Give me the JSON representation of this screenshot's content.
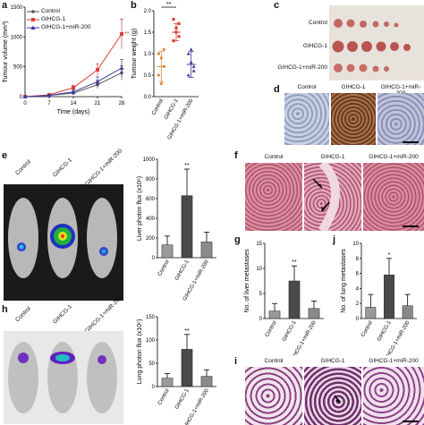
{
  "panels": {
    "a": {
      "label": "a",
      "xlabel": "Time (days)",
      "ylabel": "Tumour volume (mm³)",
      "sig": "**",
      "legend": [
        "Control",
        "GIHCG-1",
        "GIHCG-1+miR-200"
      ],
      "colors": {
        "control": "#555555",
        "gihcg": "#d9403a",
        "mir": "#3a3aa0"
      }
    },
    "b": {
      "label": "b",
      "ylabel": "Tumour weight (g)",
      "sig": "**"
    },
    "c": {
      "label": "c",
      "rows": [
        "Control",
        "GIHCG-1",
        "GIHCG-1+miR-200"
      ]
    },
    "d": {
      "label": "d",
      "headers": [
        "Control",
        "GIHCG-1",
        "GIHCG-1+miR-200"
      ]
    },
    "e": {
      "label": "e",
      "ylabel": "Liver photon flux (x10⁶)",
      "sig": "**",
      "mouse_labels": [
        "Control",
        "GIHCG-1",
        "GIHCG-1+miR-200"
      ]
    },
    "f": {
      "label": "f",
      "headers": [
        "Control",
        "GIHCG-1",
        "GIHCG-1+miR-200"
      ]
    },
    "g": {
      "label": "g",
      "ylabel": "No. of liver metastases",
      "sig": "**"
    },
    "h": {
      "label": "h",
      "ylabel": "Lung photon flux (x10⁶)",
      "sig": "**",
      "mouse_labels": [
        "Control",
        "GIHCG-1",
        "GIHCG-1+miR-200"
      ]
    },
    "i": {
      "label": "i",
      "headers": [
        "Control",
        "GIHCG-1",
        "GIHCG-1+miR-200"
      ]
    },
    "j": {
      "label": "j",
      "ylabel": "No. of lung metastases",
      "sig": "*"
    }
  },
  "chart_data": [
    {
      "id": "a",
      "type": "line",
      "x": [
        0,
        7,
        14,
        21,
        28
      ],
      "xlabel": "Time (days)",
      "ylabel": "Tumour volume (mm³)",
      "ylim": [
        0,
        1500
      ],
      "yticks": [
        0,
        500,
        1000,
        1500
      ],
      "series": [
        {
          "name": "Control",
          "values": [
            0,
            20,
            60,
            200,
            400
          ],
          "err": [
            0,
            10,
            30,
            70,
            120
          ]
        },
        {
          "name": "GIHCG-1",
          "values": [
            0,
            30,
            150,
            450,
            1050
          ],
          "err": [
            0,
            15,
            40,
            100,
            250
          ]
        },
        {
          "name": "GIHCG-1+miR-200",
          "values": [
            0,
            20,
            80,
            250,
            480
          ],
          "err": [
            0,
            10,
            30,
            80,
            140
          ]
        }
      ]
    },
    {
      "id": "b",
      "type": "scatter",
      "categories": [
        "Control",
        "GIHCG-1",
        "GIHCG-1+miR-200"
      ],
      "ylabel": "Tumour weight (g)",
      "ylim": [
        0,
        2.0
      ],
      "yticks": [
        0,
        0.5,
        1.0,
        1.5,
        2.0
      ],
      "means": [
        0.7,
        1.5,
        0.75
      ],
      "sd": [
        0.35,
        0.2,
        0.3
      ],
      "points": [
        [
          1.0,
          0.9,
          0.7,
          0.5,
          0.3,
          1.1
        ],
        [
          1.8,
          1.6,
          1.4,
          1.3,
          1.5,
          1.7
        ],
        [
          1.0,
          0.8,
          0.6,
          0.5,
          1.1,
          0.7
        ]
      ]
    },
    {
      "id": "e",
      "type": "bar",
      "categories": [
        "Control",
        "GIHCG-1",
        "GIHCG-1+miR-200"
      ],
      "ylabel": "Liver photon flux (x10⁶)",
      "ylim": [
        0,
        1000
      ],
      "yticks": [
        0,
        200,
        400,
        600,
        800,
        1000
      ],
      "values": [
        130,
        630,
        160
      ],
      "err": [
        90,
        270,
        100
      ]
    },
    {
      "id": "g",
      "type": "bar",
      "categories": [
        "Control",
        "GIHCG-1",
        "GIHCG-1+miR-200"
      ],
      "ylabel": "No. of liver metastases",
      "ylim": [
        0,
        15
      ],
      "yticks": [
        0,
        5,
        10,
        15
      ],
      "values": [
        1.5,
        7.5,
        2.0
      ],
      "err": [
        1.5,
        3.0,
        1.5
      ]
    },
    {
      "id": "h",
      "type": "bar",
      "categories": [
        "Control",
        "GIHCG-1",
        "GIHCG-1+miR-200"
      ],
      "ylabel": "Lung photon flux (x10⁶)",
      "ylim": [
        0,
        150
      ],
      "yticks": [
        0,
        50,
        100,
        150
      ],
      "values": [
        18,
        80,
        22
      ],
      "err": [
        10,
        32,
        14
      ]
    },
    {
      "id": "j",
      "type": "bar",
      "categories": [
        "Control",
        "GIHCG-1",
        "GIHCG-1+miR-200"
      ],
      "ylabel": "No. of lung metastases",
      "ylim": [
        0,
        10
      ],
      "yticks": [
        0,
        2,
        4,
        6,
        8,
        10
      ],
      "values": [
        1.5,
        5.8,
        1.7
      ],
      "err": [
        1.7,
        2.2,
        1.5
      ]
    }
  ]
}
